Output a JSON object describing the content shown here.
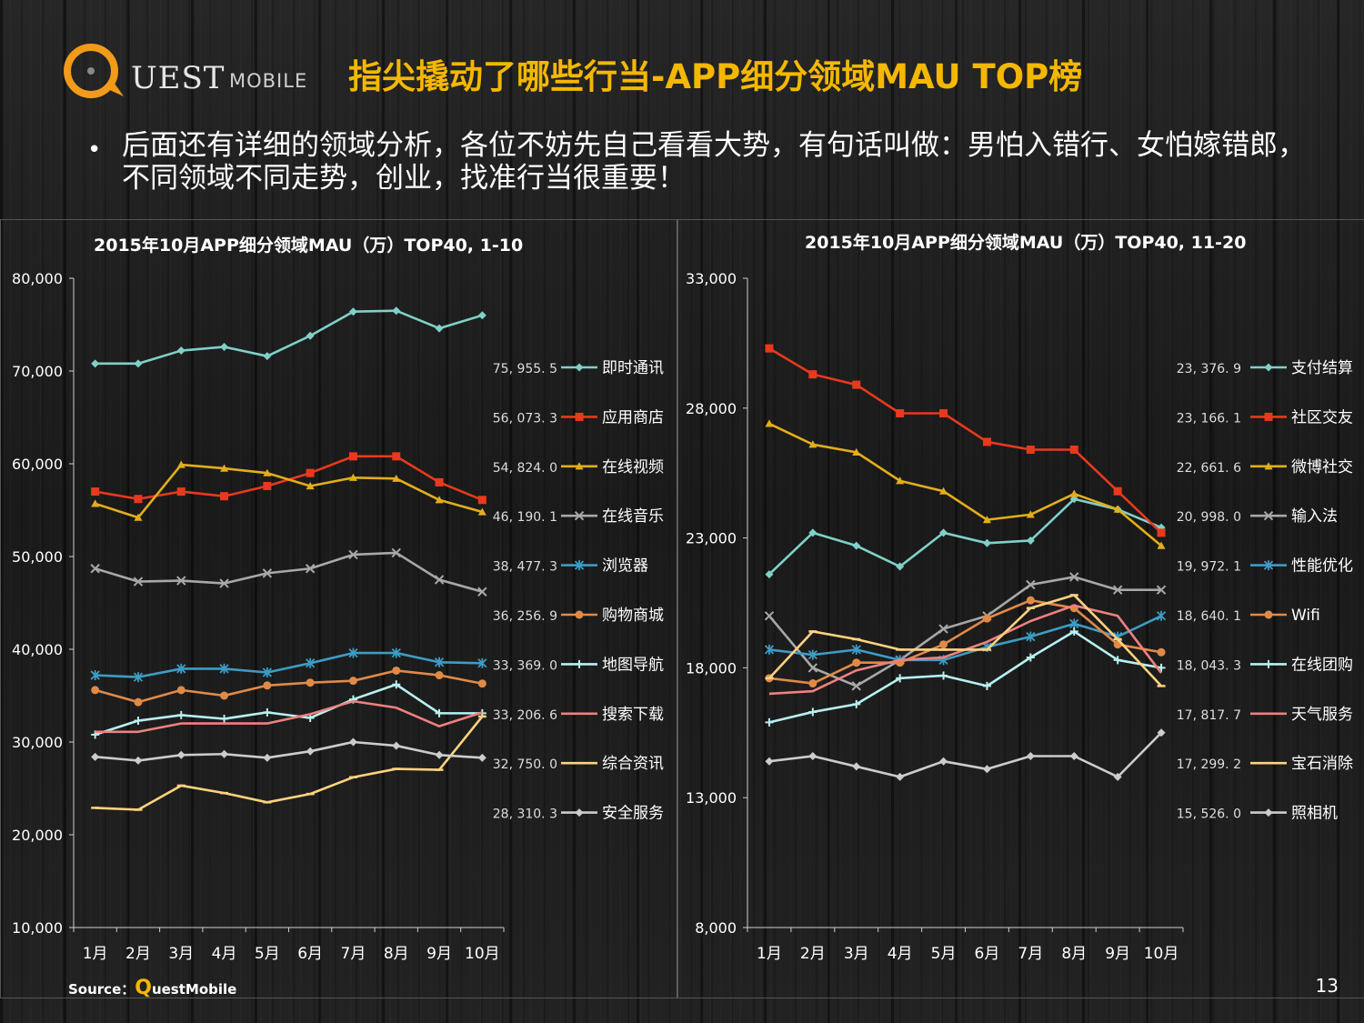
{
  "logo": {
    "brand": "UEST",
    "sub": "MOBILE"
  },
  "title": "指尖撬动了哪些行当-APP细分领域MAU TOP榜",
  "bullet": "后面还有详细的领域分析，各位不妨先自己看看大势，有句话叫做：男怕入错行、女怕嫁错郎，不同领域不同走势，创业，找准行当很重要！",
  "source": {
    "prefix": "Source：",
    "q": "Q",
    "rest": "uestMobile"
  },
  "page_number": "13",
  "chart_data": [
    {
      "type": "line",
      "title": "2015年10月APP细分领域MAU（万）TOP40, 1-10",
      "categories": [
        "1月",
        "2月",
        "3月",
        "4月",
        "5月",
        "6月",
        "7月",
        "8月",
        "9月",
        "10月"
      ],
      "ylim": [
        10000,
        80000
      ],
      "yticks": [
        10000,
        20000,
        30000,
        40000,
        50000,
        60000,
        70000,
        80000
      ],
      "ytick_labels": [
        "10,000",
        "20,000",
        "30,000",
        "40,000",
        "50,000",
        "60,000",
        "70,000",
        "80,000"
      ],
      "series": [
        {
          "name": "即时通讯",
          "label": "75, 955. 5",
          "color": "#7fd1c8",
          "marker": "diamond",
          "values": [
            70800,
            70800,
            72200,
            72600,
            71600,
            73800,
            76400,
            76500,
            74600,
            76000
          ]
        },
        {
          "name": "应用商店",
          "label": "56, 073. 3",
          "color": "#e8391d",
          "marker": "square",
          "values": [
            57000,
            56200,
            57000,
            56500,
            57600,
            59000,
            60800,
            60800,
            58000,
            56100
          ]
        },
        {
          "name": "在线视频",
          "label": "54, 824. 0",
          "color": "#e3ae1a",
          "marker": "triangle",
          "values": [
            55700,
            54200,
            59900,
            59500,
            59000,
            57600,
            58500,
            58400,
            56100,
            54800
          ]
        },
        {
          "name": "在线音乐",
          "label": "46, 190. 1",
          "color": "#a8a8a8",
          "marker": "x",
          "values": [
            48700,
            47300,
            47400,
            47100,
            48200,
            48700,
            50200,
            50400,
            47500,
            46200
          ]
        },
        {
          "name": "浏览器",
          "label": "38, 477. 3",
          "color": "#3d9cc4",
          "marker": "star",
          "values": [
            37200,
            37000,
            37900,
            37900,
            37500,
            38500,
            39600,
            39600,
            38600,
            38500
          ]
        },
        {
          "name": "购物商城",
          "label": "36, 256. 9",
          "color": "#e08a48",
          "marker": "circle",
          "values": [
            35600,
            34300,
            35600,
            35000,
            36100,
            36400,
            36600,
            37700,
            37200,
            36300
          ]
        },
        {
          "name": "地图导航",
          "label": "33, 369. 0",
          "color": "#b8f0f0",
          "marker": "plus",
          "values": [
            30800,
            32300,
            32900,
            32500,
            33200,
            32600,
            34600,
            36200,
            33100,
            33100
          ]
        },
        {
          "name": "搜索下载",
          "label": "33, 206. 6",
          "color": "#f08080",
          "marker": "none",
          "values": [
            31100,
            31100,
            32000,
            32000,
            32000,
            33000,
            34400,
            33700,
            31700,
            33200
          ]
        },
        {
          "name": "综合资讯",
          "label": "32, 750. 0",
          "color": "#ffd27f",
          "marker": "dash",
          "values": [
            22900,
            22700,
            25300,
            24500,
            23500,
            24400,
            26200,
            27100,
            27000,
            32750
          ]
        },
        {
          "name": "安全服务",
          "label": "28, 310. 3",
          "color": "#cccccc",
          "marker": "diamond",
          "values": [
            28400,
            28000,
            28600,
            28700,
            28300,
            29000,
            30000,
            29600,
            28600,
            28300
          ]
        }
      ]
    },
    {
      "type": "line",
      "title": "2015年10月APP细分领域MAU（万）TOP40, 11-20",
      "categories": [
        "1月",
        "2月",
        "3月",
        "4月",
        "5月",
        "6月",
        "7月",
        "8月",
        "9月",
        "10月"
      ],
      "ylim": [
        8000,
        33000
      ],
      "yticks": [
        8000,
        13000,
        18000,
        23000,
        28000,
        33000
      ],
      "ytick_labels": [
        "8,000",
        "13,000",
        "18,000",
        "23,000",
        "28,000",
        "33,000"
      ],
      "series": [
        {
          "name": "支付结算",
          "label": "23, 376. 9",
          "color": "#7fd1c8",
          "marker": "diamond",
          "values": [
            21600,
            23200,
            22700,
            21900,
            23200,
            22800,
            22900,
            24500,
            24100,
            23400
          ]
        },
        {
          "name": "社区交友",
          "label": "23, 166. 1",
          "color": "#e8391d",
          "marker": "square",
          "values": [
            30300,
            29300,
            28900,
            27800,
            27800,
            26700,
            26400,
            26400,
            24800,
            23200
          ]
        },
        {
          "name": "微博社交",
          "label": "22, 661. 6",
          "color": "#e3ae1a",
          "marker": "triangle",
          "values": [
            27400,
            26600,
            26300,
            25200,
            24800,
            23700,
            23900,
            24700,
            24100,
            22700
          ]
        },
        {
          "name": "输入法",
          "label": "20, 998. 0",
          "color": "#a8a8a8",
          "marker": "x",
          "values": [
            20000,
            18000,
            17300,
            18300,
            19500,
            20000,
            21200,
            21500,
            21000,
            21000
          ]
        },
        {
          "name": "性能优化",
          "label": "19, 972. 1",
          "color": "#3d9cc4",
          "marker": "star",
          "values": [
            18700,
            18500,
            18700,
            18300,
            18300,
            18800,
            19200,
            19700,
            19200,
            20000
          ]
        },
        {
          "name": "Wifi",
          "label": "18, 640. 1",
          "color": "#e08a48",
          "marker": "circle",
          "values": [
            17600,
            17400,
            18200,
            18200,
            18900,
            19900,
            20600,
            20300,
            18900,
            18600
          ]
        },
        {
          "name": "在线团购",
          "label": "18, 043. 3",
          "color": "#b8f0f0",
          "marker": "plus",
          "values": [
            15900,
            16300,
            16600,
            17600,
            17700,
            17300,
            18400,
            19400,
            18300,
            18000
          ]
        },
        {
          "name": "天气服务",
          "label": "17, 817. 7",
          "color": "#f08080",
          "marker": "none",
          "values": [
            17000,
            17100,
            17900,
            18300,
            18400,
            19000,
            19800,
            20400,
            20000,
            17800
          ]
        },
        {
          "name": "宝石消除",
          "label": "17, 299. 2",
          "color": "#ffd27f",
          "marker": "dash",
          "values": [
            17600,
            19400,
            19100,
            18700,
            18700,
            18700,
            20300,
            20800,
            19100,
            17300
          ]
        },
        {
          "name": "照相机",
          "label": "15, 526. 0",
          "color": "#cccccc",
          "marker": "diamond",
          "values": [
            14400,
            14600,
            14200,
            13800,
            14400,
            14100,
            14600,
            14600,
            13800,
            15500
          ]
        }
      ]
    }
  ]
}
